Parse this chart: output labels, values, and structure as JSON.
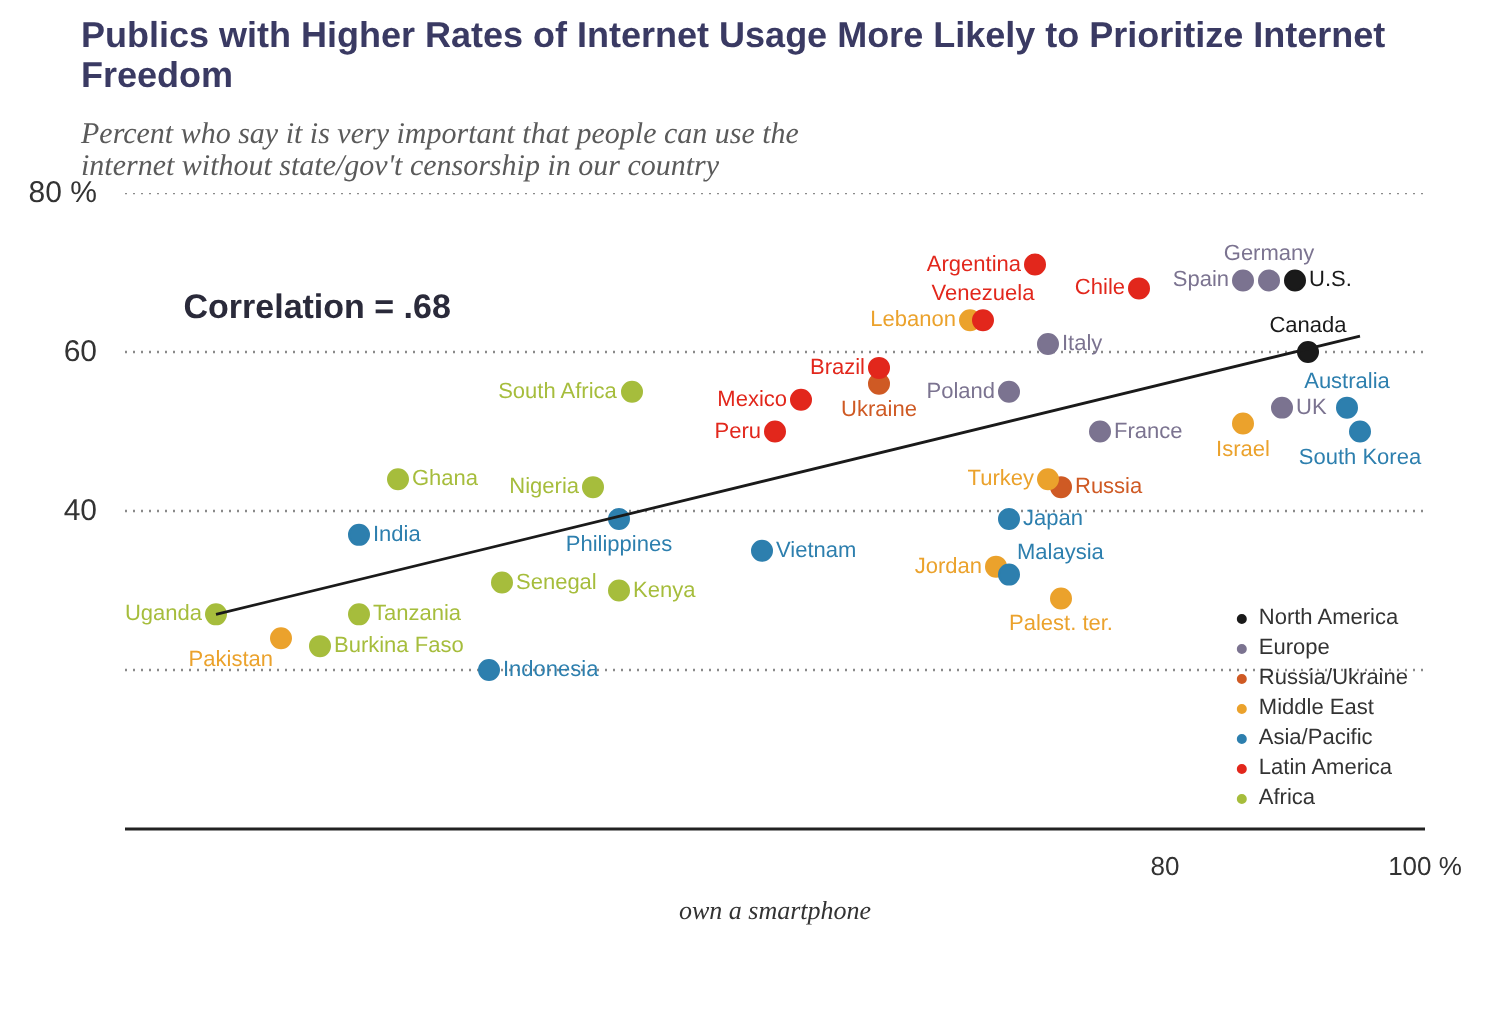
{
  "chart_data": {
    "type": "scatter",
    "title": "Publics with Higher Rates of Internet Usage More Likely to Prioritize Internet Freedom",
    "subtitle": "Percent who say it is very important that people can use the internet without state/gov't censorship in our country",
    "xlabel": "own a smartphone",
    "xlim": [
      0,
      100
    ],
    "ylim": [
      0,
      80
    ],
    "xticks": [
      80,
      {
        "value": 100,
        "label": "100 %"
      }
    ],
    "yticks": [
      {
        "value": 20,
        "label": null
      },
      40,
      60,
      {
        "value": 80,
        "label": "80 %"
      }
    ],
    "grid": "y",
    "legend": "bottom right",
    "series": [
      {
        "name": "North America",
        "color": "#1a1a1a",
        "marker": "circle",
        "x": [
          90,
          91
        ],
        "values": [
          69,
          60
        ]
      },
      {
        "name": "Europe",
        "color": "#7b7390",
        "marker": "circle",
        "x": [
          86,
          88,
          71,
          68,
          89,
          75
        ],
        "values": [
          69,
          69,
          61,
          55,
          53,
          50
        ]
      },
      {
        "name": "Russia/Ukraine",
        "color": "#cf5a24",
        "marker": "circle",
        "x": [
          58,
          72
        ],
        "values": [
          56,
          43
        ]
      },
      {
        "name": "Middle East",
        "color": "#eba22c",
        "marker": "circle",
        "x": [
          65,
          86,
          71,
          67,
          72,
          12
        ],
        "values": [
          64,
          51,
          44,
          33,
          29,
          24
        ]
      },
      {
        "name": "Asia/Pacific",
        "color": "#2d7fae",
        "marker": "circle",
        "x": [
          94,
          95,
          68,
          68,
          49,
          38,
          18,
          28
        ],
        "values": [
          53,
          50,
          39,
          32,
          35,
          39,
          37,
          20
        ]
      },
      {
        "name": "Latin America",
        "color": "#e2271c",
        "marker": "circle",
        "x": [
          70,
          78,
          66,
          58,
          52,
          50
        ],
        "values": [
          71,
          68,
          64,
          58,
          54,
          50
        ]
      },
      {
        "name": "Africa",
        "color": "#a6bd3c",
        "marker": "circle",
        "x": [
          39,
          21,
          36,
          29,
          38,
          18,
          7,
          15
        ],
        "values": [
          55,
          44,
          43,
          31,
          30,
          27,
          27,
          23
        ]
      },
      {
        "type": "line",
        "color": "#1a1a1a",
        "x": [
          7,
          95
        ],
        "values": [
          27,
          62
        ]
      }
    ],
    "annotations": [
      "Correlation = .68",
      {
        "text": "U.S.",
        "x": 90,
        "y": 69
      },
      {
        "text": "Canada",
        "x": 91,
        "y": 60
      },
      {
        "text": "Spain",
        "x": 86,
        "y": 69
      },
      {
        "text": "Germany",
        "x": 88,
        "y": 69
      },
      {
        "text": "Italy",
        "x": 71,
        "y": 61
      },
      {
        "text": "Poland",
        "x": 68,
        "y": 55
      },
      {
        "text": "UK",
        "x": 89,
        "y": 53
      },
      {
        "text": "France",
        "x": 75,
        "y": 50
      },
      {
        "text": "Ukraine",
        "x": 58,
        "y": 56
      },
      {
        "text": "Russia",
        "x": 72,
        "y": 43
      },
      {
        "text": "Lebanon",
        "x": 65,
        "y": 64
      },
      {
        "text": "Israel",
        "x": 86,
        "y": 51
      },
      {
        "text": "Turkey",
        "x": 71,
        "y": 44
      },
      {
        "text": "Jordan",
        "x": 67,
        "y": 33
      },
      {
        "text": "Palest. ter.",
        "x": 72,
        "y": 29
      },
      {
        "text": "Pakistan",
        "x": 12,
        "y": 24
      },
      {
        "text": "Australia",
        "x": 94,
        "y": 53
      },
      {
        "text": "South Korea",
        "x": 95,
        "y": 50
      },
      {
        "text": "Japan",
        "x": 68,
        "y": 39
      },
      {
        "text": "Malaysia",
        "x": 68,
        "y": 32
      },
      {
        "text": "Vietnam",
        "x": 49,
        "y": 35
      },
      {
        "text": "Philippines",
        "x": 38,
        "y": 39
      },
      {
        "text": "India",
        "x": 18,
        "y": 37
      },
      {
        "text": "Indonesia",
        "x": 28,
        "y": 20
      },
      {
        "text": "Argentina",
        "x": 70,
        "y": 71
      },
      {
        "text": "Chile",
        "x": 78,
        "y": 68
      },
      {
        "text": "Venezuela",
        "x": 66,
        "y": 64
      },
      {
        "text": "Brazil",
        "x": 58,
        "y": 58
      },
      {
        "text": "Mexico",
        "x": 52,
        "y": 54
      },
      {
        "text": "Peru",
        "x": 50,
        "y": 50
      },
      {
        "text": "South Africa",
        "x": 39,
        "y": 55
      },
      {
        "text": "Ghana",
        "x": 21,
        "y": 44
      },
      {
        "text": "Nigeria",
        "x": 36,
        "y": 43
      },
      {
        "text": "Senegal",
        "x": 29,
        "y": 31
      },
      {
        "text": "Kenya",
        "x": 38,
        "y": 30
      },
      {
        "text": "Tanzania",
        "x": 18,
        "y": 27
      },
      {
        "text": "Uganda",
        "x": 7,
        "y": 27
      },
      {
        "text": "Burkina Faso",
        "x": 15,
        "y": 23
      }
    ]
  }
}
